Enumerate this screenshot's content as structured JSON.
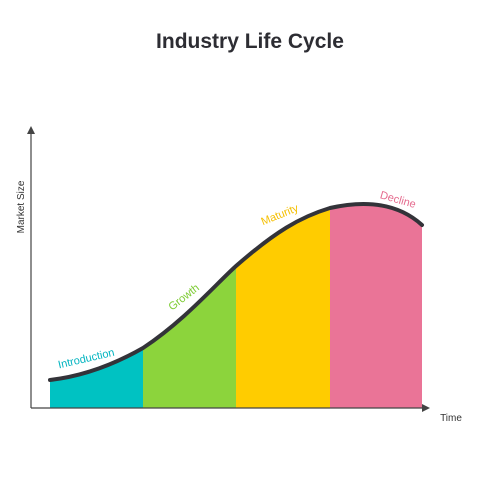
{
  "chart_data": {
    "type": "area",
    "title": "Industry Life Cycle",
    "xlabel": "Time",
    "ylabel": "Market Size",
    "stages": [
      {
        "name": "Introduction",
        "color": "#00c2c2",
        "label_color": "#00b4c0"
      },
      {
        "name": "Growth",
        "color": "#8cd43c",
        "label_color": "#7ccb32"
      },
      {
        "name": "Maturity",
        "color": "#ffcc00",
        "label_color": "#f5bf00"
      },
      {
        "name": "Decline",
        "color": "#ea7497",
        "label_color": "#e56b8e"
      }
    ],
    "curve_color": "#333339"
  }
}
